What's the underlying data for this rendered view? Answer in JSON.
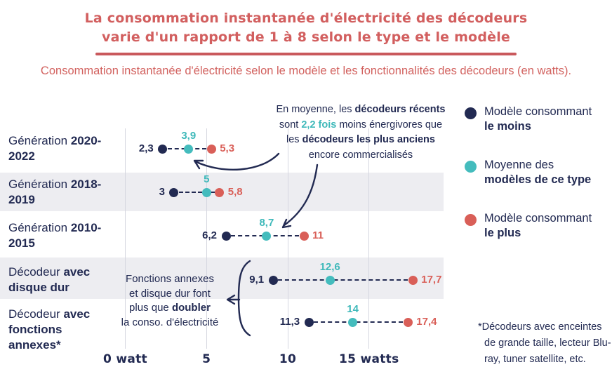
{
  "header": {
    "title_line1": "La consommation instantanée d'électricité des décodeurs",
    "title_line2": "varie d'un rapport de 1 à 8 selon le type et le modèle",
    "subtitle": "Consommation instantanée d'électricité selon le modèle et les fonctionnalités des décodeurs (en watts)."
  },
  "chart_data": {
    "type": "dumbbell",
    "title": "Consommation instantanée d'électricité selon le modèle et les fonctionnalités des décodeurs (en watts)",
    "unit": "watts",
    "grid": true,
    "categories": [
      {
        "normal": "Génération ",
        "bold": "2020-2022"
      },
      {
        "normal": "Génération ",
        "bold": "2018-2019"
      },
      {
        "normal": "Génération ",
        "bold": "2010-2015"
      },
      {
        "normal": "Décodeur ",
        "bold": "avec disque dur"
      },
      {
        "normal": "Décodeur ",
        "bold": "avec fonctions annexes*"
      }
    ],
    "series": [
      {
        "name": "Modèle consommant le moins",
        "role": "min",
        "color": "#222a52",
        "values": [
          2.3,
          3,
          6.2,
          9.1,
          11.3
        ],
        "labels": [
          "2,3",
          "3",
          "6,2",
          "9,1",
          "11,3"
        ]
      },
      {
        "name": "Moyenne des modèles de ce type",
        "role": "mean",
        "color": "#44bcbd",
        "values": [
          3.9,
          5,
          8.7,
          12.6,
          14
        ],
        "labels": [
          "3,9",
          "5",
          "8,7",
          "12,6",
          "14"
        ]
      },
      {
        "name": "Modèle consommant le plus",
        "role": "max",
        "color": "#d95f58",
        "values": [
          5.3,
          5.8,
          11,
          17.7,
          17.4
        ],
        "labels": [
          "5,3",
          "5,8",
          "11",
          "17,7",
          "17,4"
        ]
      }
    ],
    "x_axis": {
      "range": [
        0,
        18
      ],
      "ticks": [
        {
          "value": 0,
          "label": "0 watt"
        },
        {
          "value": 5,
          "label": "5"
        },
        {
          "value": 10,
          "label": "10"
        },
        {
          "value": 15,
          "label": "15 watts"
        }
      ]
    }
  },
  "legend": {
    "items": [
      {
        "normal": "Modèle consommant",
        "bold": "le moins",
        "color": "#222a52",
        "role": "min"
      },
      {
        "normal": "Moyenne des",
        "bold": "modèles de ce type",
        "color": "#44bcbd",
        "role": "mean"
      },
      {
        "normal": "Modèle consommant",
        "bold": "le plus",
        "color": "#d95f58",
        "role": "max"
      }
    ]
  },
  "annotations": {
    "top": {
      "segments": [
        {
          "t": "En moyenne, les "
        },
        {
          "t": "décodeurs récents",
          "b": 1
        },
        {
          "br": 1
        },
        {
          "t": "sont "
        },
        {
          "t": "2,2 fois",
          "teal": 1
        },
        {
          "t": " moins énergivores que"
        },
        {
          "br": 1
        },
        {
          "t": "les "
        },
        {
          "t": "décodeurs les plus anciens",
          "b": 1
        },
        {
          "br": 1
        },
        {
          "t": "encore commercialisés"
        }
      ]
    },
    "side": {
      "segments": [
        {
          "t": "Fonctions annexes"
        },
        {
          "br": 1
        },
        {
          "t": "et disque dur font"
        },
        {
          "br": 1
        },
        {
          "t": "plus que "
        },
        {
          "t": "doubler",
          "b": 1
        },
        {
          "br": 1
        },
        {
          "t": "la conso. d'électricité"
        }
      ]
    }
  },
  "footnote": {
    "text": "*Décodeurs avec enceintes de grande taille, lecteur Blu-ray, tuner satellite, etc."
  },
  "colors": {
    "accent_red": "#d25f5f",
    "navy": "#222a52",
    "teal": "#44bcbd",
    "coral": "#d95f58",
    "row_band": "#ededf1",
    "gridline": "#d6d7e0"
  }
}
